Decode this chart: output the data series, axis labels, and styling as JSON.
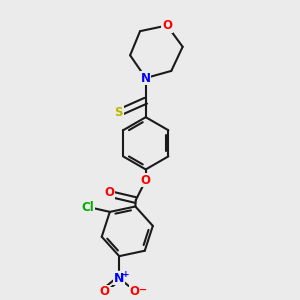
{
  "bg_color": "#ebebeb",
  "bond_color": "#1a1a1a",
  "bond_width": 1.5,
  "atom_colors": {
    "S": "#b8b800",
    "N": "#0000ff",
    "O": "#ff0000",
    "Cl": "#00aa00",
    "C": "#1a1a1a"
  },
  "font_size": 8.5,
  "fig_size": [
    3.0,
    3.0
  ],
  "dpi": 100
}
